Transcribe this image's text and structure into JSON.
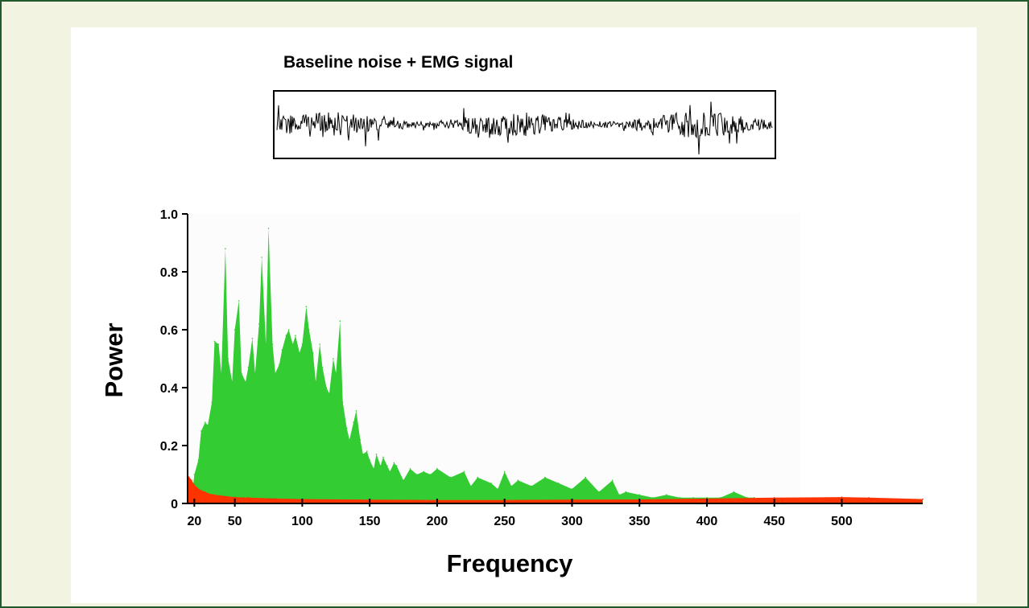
{
  "colors": {
    "frame_background": "#f3f3e1",
    "frame_border": "#215a2c",
    "emg_fill": "#33cc33",
    "noise_fill": "#ff3300",
    "signal_trace": "#000000"
  },
  "signal_panel": {
    "title": "Baseline noise + EMG signal"
  },
  "chart_data": {
    "type": "area",
    "title": "",
    "xlabel": "Frequency",
    "ylabel": "Power",
    "xlim": [
      15,
      560
    ],
    "ylim": [
      0,
      1.0
    ],
    "x_ticks": [
      20,
      50,
      100,
      150,
      200,
      250,
      300,
      350,
      400,
      450,
      500
    ],
    "x_tick_labels": [
      "20",
      "50",
      "100",
      "150",
      "200",
      "250",
      "300",
      "350",
      "400",
      "450",
      "500"
    ],
    "y_ticks": [
      0,
      0.2,
      0.4,
      0.6,
      0.8,
      1.0
    ],
    "y_tick_labels": [
      "0",
      "0.2",
      "0.4",
      "0.6",
      "0.8",
      "1.0"
    ],
    "grid": false,
    "legend": "none",
    "series": [
      {
        "fill": "#33cc33",
        "x": [
          18,
          20,
          23,
          25,
          28,
          30,
          33,
          35,
          38,
          40,
          43,
          45,
          48,
          50,
          53,
          55,
          58,
          60,
          63,
          65,
          68,
          70,
          73,
          75,
          78,
          80,
          83,
          85,
          88,
          90,
          93,
          95,
          98,
          100,
          103,
          105,
          108,
          110,
          113,
          115,
          118,
          120,
          123,
          125,
          128,
          130,
          133,
          135,
          138,
          140,
          143,
          145,
          148,
          150,
          153,
          155,
          158,
          160,
          163,
          165,
          168,
          170,
          175,
          180,
          185,
          190,
          195,
          200,
          210,
          220,
          225,
          230,
          240,
          245,
          250,
          255,
          260,
          270,
          280,
          290,
          300,
          310,
          320,
          330,
          335,
          340,
          350,
          360,
          370,
          380,
          390,
          400,
          410,
          420,
          430,
          435,
          440,
          450
        ],
        "values": [
          0.02,
          0.1,
          0.15,
          0.25,
          0.28,
          0.27,
          0.35,
          0.56,
          0.55,
          0.45,
          0.88,
          0.5,
          0.42,
          0.6,
          0.7,
          0.45,
          0.42,
          0.47,
          0.57,
          0.45,
          0.62,
          0.85,
          0.55,
          0.95,
          0.55,
          0.45,
          0.48,
          0.53,
          0.58,
          0.6,
          0.55,
          0.58,
          0.52,
          0.55,
          0.68,
          0.6,
          0.52,
          0.42,
          0.55,
          0.47,
          0.4,
          0.38,
          0.5,
          0.45,
          0.63,
          0.35,
          0.26,
          0.22,
          0.28,
          0.32,
          0.22,
          0.17,
          0.18,
          0.15,
          0.12,
          0.17,
          0.13,
          0.16,
          0.13,
          0.11,
          0.14,
          0.13,
          0.08,
          0.12,
          0.1,
          0.11,
          0.1,
          0.12,
          0.09,
          0.11,
          0.06,
          0.09,
          0.07,
          0.05,
          0.11,
          0.06,
          0.08,
          0.06,
          0.09,
          0.07,
          0.05,
          0.09,
          0.04,
          0.08,
          0.03,
          0.04,
          0.03,
          0.02,
          0.03,
          0.02,
          0.02,
          0.02,
          0.02,
          0.04,
          0.02,
          0.02,
          0.01,
          0.0
        ]
      },
      {
        "fill": "#ff3300",
        "x": [
          15,
          18,
          20,
          22,
          25,
          28,
          30,
          35,
          40,
          50,
          60,
          80,
          100,
          150,
          200,
          250,
          300,
          350,
          400,
          450,
          500,
          520,
          560
        ],
        "values": [
          0.1,
          0.08,
          0.065,
          0.055,
          0.045,
          0.04,
          0.035,
          0.03,
          0.027,
          0.022,
          0.02,
          0.017,
          0.015,
          0.013,
          0.012,
          0.012,
          0.013,
          0.014,
          0.017,
          0.02,
          0.022,
          0.02,
          0.015
        ]
      }
    ]
  }
}
